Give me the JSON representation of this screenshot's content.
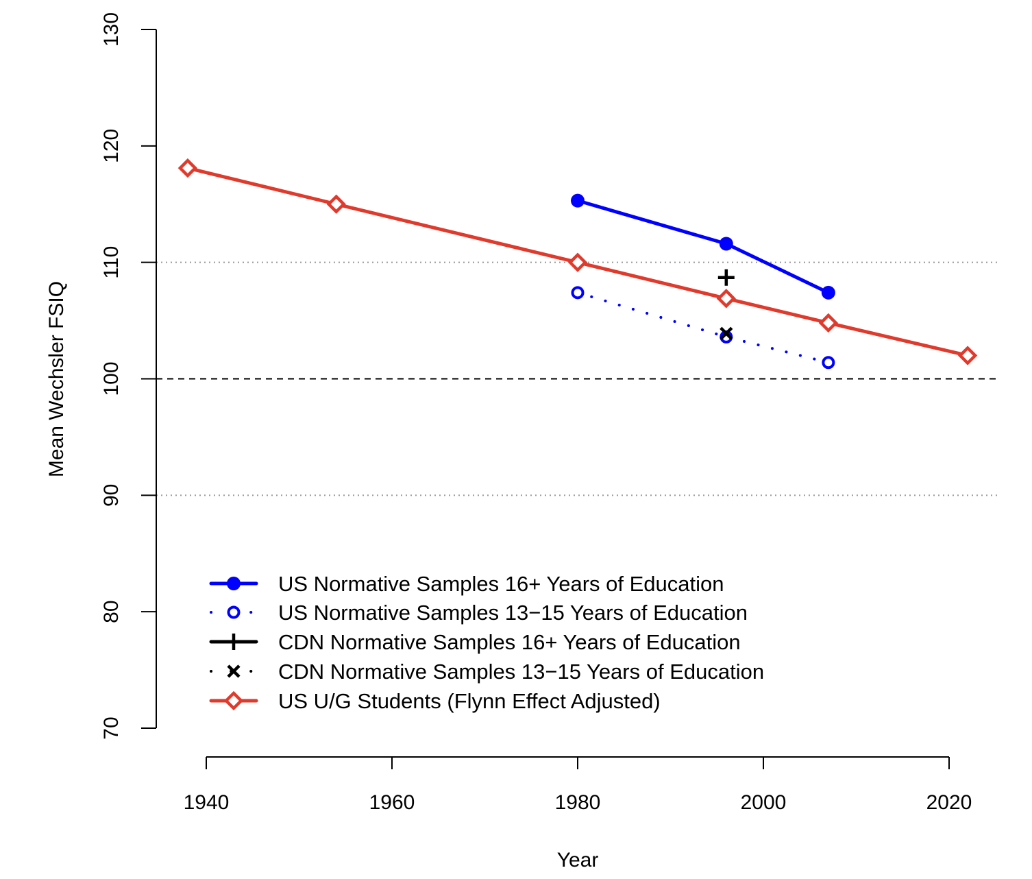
{
  "chart_data": {
    "type": "line",
    "xlabel": "Year",
    "ylabel": "Mean Wechsler FSIQ",
    "xlim": [
      1938,
      2022
    ],
    "ylim": [
      70,
      130
    ],
    "xticks": [
      "1940",
      "1960",
      "1980",
      "2000",
      "2020"
    ],
    "yticks": [
      "70",
      "80",
      "90",
      "100",
      "110",
      "120",
      "130"
    ],
    "reference_lines": [
      {
        "y": 110,
        "style": "dotted",
        "color": "#999999"
      },
      {
        "y": 100,
        "style": "dashed",
        "color": "#000000"
      },
      {
        "y": 90,
        "style": "dotted",
        "color": "#999999"
      }
    ],
    "legend_position": "bottom-left",
    "series": [
      {
        "name": "US Normative Samples 16+ Years of Education",
        "color": "#0000ff",
        "line": "solid",
        "marker": "filled-circle",
        "points": [
          {
            "x": 1980,
            "y": 115.3
          },
          {
            "x": 1996,
            "y": 111.6
          },
          {
            "x": 2007,
            "y": 107.4
          }
        ]
      },
      {
        "name": "US Normative Samples 13−15 Years of Education",
        "color": "#0000ff",
        "line": "dotted",
        "marker": "open-circle",
        "points": [
          {
            "x": 1980,
            "y": 107.4
          },
          {
            "x": 1996,
            "y": 103.6
          },
          {
            "x": 2007,
            "y": 101.4
          }
        ]
      },
      {
        "name": "CDN Normative Samples 16+ Years of Education",
        "color": "#000000",
        "line": "solid",
        "marker": "plus",
        "points": [
          {
            "x": 1996,
            "y": 108.7
          }
        ]
      },
      {
        "name": "CDN Normative Samples 13−15 Years of Education",
        "color": "#000000",
        "line": "dotted",
        "marker": "cross",
        "points": [
          {
            "x": 1996,
            "y": 103.9
          }
        ]
      },
      {
        "name": "US U/G Students (Flynn Effect Adjusted)",
        "color": "#e03a2c",
        "line": "solid",
        "marker": "open-diamond",
        "points": [
          {
            "x": 1938,
            "y": 118.1
          },
          {
            "x": 1954,
            "y": 115.0
          },
          {
            "x": 1980,
            "y": 110.0
          },
          {
            "x": 1996,
            "y": 106.9
          },
          {
            "x": 2007,
            "y": 104.8
          },
          {
            "x": 2022,
            "y": 102.0
          }
        ]
      }
    ]
  }
}
